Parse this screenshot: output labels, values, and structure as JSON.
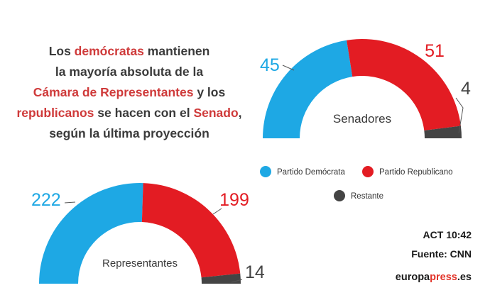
{
  "headline": {
    "t1": "Los ",
    "h1": "demócratas",
    "t2": " mantienen",
    "t3": "la mayoría absoluta de la",
    "h2": "Cámara de Representantes",
    "t4": " y los",
    "h3": "republicanos",
    "t5": " se hacen con el ",
    "h4": "Senado",
    "t6": ",",
    "t7": "según la última proyección"
  },
  "colors": {
    "democrat": "#1ea8e4",
    "republican": "#e31c23",
    "remaining": "#444444",
    "highlight": "#cf3a3a"
  },
  "chart_data": [
    {
      "type": "pie",
      "shape": "half-donut",
      "title": "Senadores",
      "series": [
        {
          "name": "Partido Demócrata",
          "value": 45
        },
        {
          "name": "Partido Republicano",
          "value": 51
        },
        {
          "name": "Restante",
          "value": 4
        }
      ]
    },
    {
      "type": "pie",
      "shape": "half-donut",
      "title": "Representantes",
      "series": [
        {
          "name": "Partido Demócrata",
          "value": 222
        },
        {
          "name": "Partido Republicano",
          "value": 199
        },
        {
          "name": "Restante",
          "value": 14
        }
      ]
    }
  ],
  "legend": {
    "items": [
      "Partido Demócrata",
      "Partido Republicano",
      "Restante"
    ],
    "position": "center"
  },
  "credits": {
    "time": "ACT 10:42",
    "source": "Fuente: CNN",
    "brand_part1": "europa",
    "brand_part2": "press",
    "brand_part3": ".es"
  }
}
